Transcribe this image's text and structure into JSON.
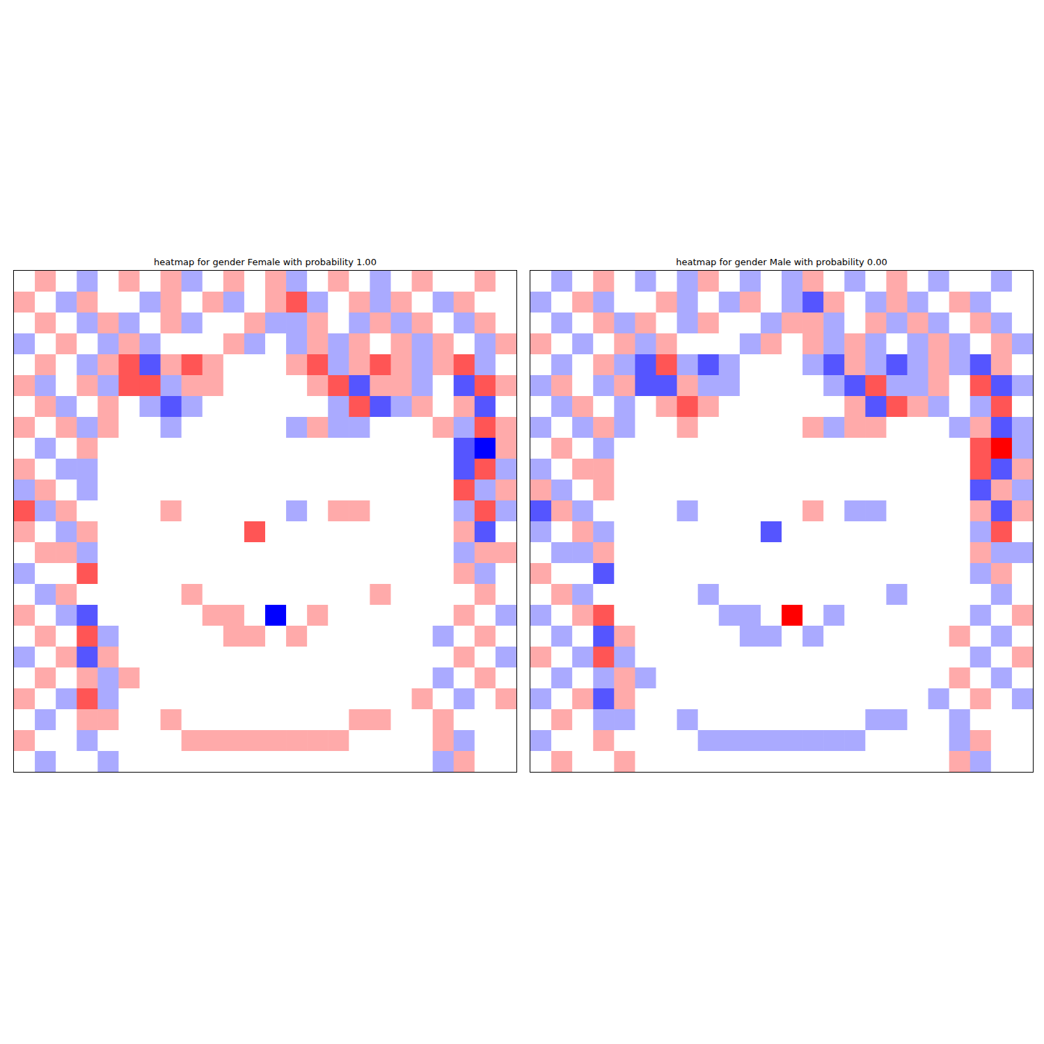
{
  "chart_data": [
    {
      "type": "heatmap",
      "title": "heatmap for gender Female with probability 1.00",
      "xlim": [
        0,
        24
      ],
      "ylim": [
        0,
        24
      ],
      "tick_labels": false,
      "cells": [
        [
          0,
          1,
          0,
          -1,
          0,
          1,
          0,
          1,
          -1,
          0,
          1,
          0,
          1,
          -1,
          0,
          1,
          0,
          -1,
          0,
          1,
          0,
          0,
          1,
          0
        ],
        [
          1,
          0,
          -1,
          1,
          0,
          0,
          -1,
          1,
          0,
          1,
          -1,
          0,
          1,
          2,
          -1,
          0,
          1,
          -1,
          1,
          0,
          -1,
          1,
          0,
          0
        ],
        [
          0,
          1,
          0,
          -1,
          1,
          -1,
          0,
          1,
          -1,
          0,
          0,
          1,
          -1,
          -1,
          1,
          0,
          -1,
          1,
          -1,
          1,
          0,
          -1,
          1,
          0
        ],
        [
          -1,
          0,
          1,
          0,
          -1,
          1,
          -1,
          0,
          0,
          0,
          1,
          -1,
          0,
          -1,
          1,
          -1,
          1,
          0,
          1,
          -1,
          1,
          0,
          -1,
          1
        ],
        [
          0,
          1,
          0,
          -1,
          1,
          2,
          -2,
          1,
          2,
          1,
          0,
          0,
          0,
          1,
          2,
          -1,
          1,
          2,
          1,
          -1,
          1,
          2,
          -1,
          0
        ],
        [
          1,
          -1,
          0,
          1,
          -1,
          2,
          2,
          -1,
          1,
          1,
          0,
          0,
          0,
          0,
          1,
          2,
          -2,
          1,
          1,
          -1,
          0,
          -2,
          2,
          1
        ],
        [
          0,
          1,
          -1,
          0,
          1,
          0,
          -1,
          -2,
          -1,
          0,
          0,
          0,
          0,
          0,
          0,
          -1,
          2,
          -2,
          -1,
          1,
          0,
          1,
          -2,
          0
        ],
        [
          1,
          0,
          1,
          -1,
          1,
          0,
          0,
          -1,
          0,
          0,
          0,
          0,
          0,
          -1,
          1,
          -1,
          -1,
          0,
          0,
          0,
          1,
          -1,
          2,
          1
        ],
        [
          0,
          -1,
          0,
          1,
          0,
          0,
          0,
          0,
          0,
          0,
          0,
          0,
          0,
          0,
          0,
          0,
          0,
          0,
          0,
          0,
          0,
          -2,
          -3,
          1
        ],
        [
          1,
          0,
          -1,
          -1,
          0,
          0,
          0,
          0,
          0,
          0,
          0,
          0,
          0,
          0,
          0,
          0,
          0,
          0,
          0,
          0,
          0,
          -2,
          2,
          -1
        ],
        [
          -1,
          1,
          0,
          -1,
          0,
          0,
          0,
          0,
          0,
          0,
          0,
          0,
          0,
          0,
          0,
          0,
          0,
          0,
          0,
          0,
          0,
          2,
          -1,
          1
        ],
        [
          2,
          -1,
          1,
          0,
          0,
          0,
          0,
          1,
          0,
          0,
          0,
          0,
          0,
          -1,
          0,
          1,
          1,
          0,
          0,
          0,
          0,
          -1,
          2,
          -1
        ],
        [
          1,
          0,
          -1,
          1,
          0,
          0,
          0,
          0,
          0,
          0,
          0,
          2,
          0,
          0,
          0,
          0,
          0,
          0,
          0,
          0,
          0,
          1,
          -2,
          0
        ],
        [
          0,
          1,
          1,
          -1,
          0,
          0,
          0,
          0,
          0,
          0,
          0,
          0,
          0,
          0,
          0,
          0,
          0,
          0,
          0,
          0,
          0,
          -1,
          1,
          1
        ],
        [
          -1,
          0,
          0,
          2,
          0,
          0,
          0,
          0,
          0,
          0,
          0,
          0,
          0,
          0,
          0,
          0,
          0,
          0,
          0,
          0,
          0,
          1,
          -1,
          0
        ],
        [
          0,
          -1,
          1,
          0,
          0,
          0,
          0,
          0,
          1,
          0,
          0,
          0,
          0,
          0,
          0,
          0,
          0,
          1,
          0,
          0,
          0,
          0,
          1,
          0
        ],
        [
          1,
          0,
          -1,
          -2,
          0,
          0,
          0,
          0,
          0,
          1,
          1,
          0,
          -3,
          0,
          1,
          0,
          0,
          0,
          0,
          0,
          0,
          1,
          0,
          -1
        ],
        [
          0,
          1,
          0,
          2,
          -1,
          0,
          0,
          0,
          0,
          0,
          1,
          1,
          0,
          1,
          0,
          0,
          0,
          0,
          0,
          0,
          -1,
          0,
          1,
          0
        ],
        [
          -1,
          0,
          1,
          -2,
          1,
          0,
          0,
          0,
          0,
          0,
          0,
          0,
          0,
          0,
          0,
          0,
          0,
          0,
          0,
          0,
          0,
          1,
          0,
          -1
        ],
        [
          0,
          1,
          0,
          1,
          -1,
          1,
          0,
          0,
          0,
          0,
          0,
          0,
          0,
          0,
          0,
          0,
          0,
          0,
          0,
          0,
          -1,
          0,
          1,
          0
        ],
        [
          1,
          0,
          -1,
          2,
          -1,
          0,
          0,
          0,
          0,
          0,
          0,
          0,
          0,
          0,
          0,
          0,
          0,
          0,
          0,
          1,
          0,
          -1,
          0,
          1
        ],
        [
          0,
          -1,
          0,
          1,
          1,
          0,
          0,
          1,
          0,
          0,
          0,
          0,
          0,
          0,
          0,
          0,
          1,
          1,
          0,
          0,
          1,
          0,
          0,
          0
        ],
        [
          1,
          0,
          0,
          -1,
          0,
          0,
          0,
          0,
          1,
          1,
          1,
          1,
          1,
          1,
          1,
          1,
          0,
          0,
          0,
          0,
          1,
          -1,
          0,
          0
        ],
        [
          0,
          -1,
          0,
          0,
          -1,
          0,
          0,
          0,
          0,
          0,
          0,
          0,
          0,
          0,
          0,
          0,
          0,
          0,
          0,
          0,
          -1,
          1,
          0,
          0
        ]
      ]
    },
    {
      "type": "heatmap",
      "title": "heatmap for gender Male with probability 0.00",
      "xlim": [
        0,
        24
      ],
      "ylim": [
        0,
        24
      ],
      "tick_labels": false,
      "cells": [
        [
          0,
          -1,
          0,
          1,
          0,
          -1,
          0,
          -1,
          1,
          0,
          -1,
          0,
          -1,
          1,
          0,
          -1,
          0,
          1,
          0,
          -1,
          0,
          0,
          -1,
          0
        ],
        [
          -1,
          0,
          1,
          -1,
          0,
          0,
          1,
          -1,
          0,
          -1,
          1,
          0,
          -1,
          -2,
          1,
          0,
          -1,
          1,
          -1,
          0,
          1,
          -1,
          0,
          0
        ],
        [
          0,
          -1,
          0,
          1,
          -1,
          1,
          0,
          -1,
          1,
          0,
          0,
          -1,
          1,
          1,
          -1,
          0,
          1,
          -1,
          1,
          -1,
          0,
          1,
          -1,
          0
        ],
        [
          1,
          0,
          -1,
          0,
          1,
          -1,
          1,
          0,
          0,
          0,
          -1,
          1,
          0,
          1,
          -1,
          1,
          -1,
          0,
          -1,
          1,
          -1,
          0,
          1,
          -1
        ],
        [
          0,
          -1,
          0,
          1,
          -1,
          -2,
          2,
          -1,
          -2,
          -1,
          0,
          0,
          0,
          -1,
          -2,
          1,
          -1,
          -2,
          -1,
          1,
          -1,
          -2,
          1,
          0
        ],
        [
          -1,
          1,
          0,
          -1,
          1,
          -2,
          -2,
          1,
          -1,
          -1,
          0,
          0,
          0,
          0,
          -1,
          -2,
          2,
          -1,
          -1,
          1,
          0,
          2,
          -2,
          -1
        ],
        [
          0,
          -1,
          1,
          0,
          -1,
          0,
          1,
          2,
          1,
          0,
          0,
          0,
          0,
          0,
          0,
          1,
          -2,
          2,
          1,
          -1,
          0,
          -1,
          2,
          0
        ],
        [
          -1,
          0,
          -1,
          1,
          -1,
          0,
          0,
          1,
          0,
          0,
          0,
          0,
          0,
          1,
          -1,
          1,
          1,
          0,
          0,
          0,
          -1,
          1,
          -2,
          -1
        ],
        [
          0,
          1,
          0,
          -1,
          0,
          0,
          0,
          0,
          0,
          0,
          0,
          0,
          0,
          0,
          0,
          0,
          0,
          0,
          0,
          0,
          0,
          2,
          3,
          -1
        ],
        [
          -1,
          0,
          1,
          1,
          0,
          0,
          0,
          0,
          0,
          0,
          0,
          0,
          0,
          0,
          0,
          0,
          0,
          0,
          0,
          0,
          0,
          2,
          -2,
          1
        ],
        [
          1,
          -1,
          0,
          1,
          0,
          0,
          0,
          0,
          0,
          0,
          0,
          0,
          0,
          0,
          0,
          0,
          0,
          0,
          0,
          0,
          0,
          -2,
          1,
          -1
        ],
        [
          -2,
          1,
          -1,
          0,
          0,
          0,
          0,
          -1,
          0,
          0,
          0,
          0,
          0,
          1,
          0,
          -1,
          -1,
          0,
          0,
          0,
          0,
          1,
          -2,
          1
        ],
        [
          -1,
          0,
          1,
          -1,
          0,
          0,
          0,
          0,
          0,
          0,
          0,
          -2,
          0,
          0,
          0,
          0,
          0,
          0,
          0,
          0,
          0,
          -1,
          2,
          0
        ],
        [
          0,
          -1,
          -1,
          1,
          0,
          0,
          0,
          0,
          0,
          0,
          0,
          0,
          0,
          0,
          0,
          0,
          0,
          0,
          0,
          0,
          0,
          1,
          -1,
          -1
        ],
        [
          1,
          0,
          0,
          -2,
          0,
          0,
          0,
          0,
          0,
          0,
          0,
          0,
          0,
          0,
          0,
          0,
          0,
          0,
          0,
          0,
          0,
          -1,
          1,
          0
        ],
        [
          0,
          1,
          -1,
          0,
          0,
          0,
          0,
          0,
          -1,
          0,
          0,
          0,
          0,
          0,
          0,
          0,
          0,
          -1,
          0,
          0,
          0,
          0,
          -1,
          0
        ],
        [
          -1,
          0,
          1,
          2,
          0,
          0,
          0,
          0,
          0,
          -1,
          -1,
          0,
          3,
          0,
          -1,
          0,
          0,
          0,
          0,
          0,
          0,
          -1,
          0,
          1
        ],
        [
          0,
          -1,
          0,
          -2,
          1,
          0,
          0,
          0,
          0,
          0,
          -1,
          -1,
          0,
          -1,
          0,
          0,
          0,
          0,
          0,
          0,
          1,
          0,
          -1,
          0
        ],
        [
          1,
          0,
          -1,
          2,
          -1,
          0,
          0,
          0,
          0,
          0,
          0,
          0,
          0,
          0,
          0,
          0,
          0,
          0,
          0,
          0,
          0,
          -1,
          0,
          1
        ],
        [
          0,
          -1,
          0,
          -1,
          1,
          -1,
          0,
          0,
          0,
          0,
          0,
          0,
          0,
          0,
          0,
          0,
          0,
          0,
          0,
          0,
          1,
          0,
          -1,
          0
        ],
        [
          -1,
          0,
          1,
          -2,
          1,
          0,
          0,
          0,
          0,
          0,
          0,
          0,
          0,
          0,
          0,
          0,
          0,
          0,
          0,
          -1,
          0,
          1,
          0,
          -1
        ],
        [
          0,
          1,
          0,
          -1,
          -1,
          0,
          0,
          -1,
          0,
          0,
          0,
          0,
          0,
          0,
          0,
          0,
          -1,
          -1,
          0,
          0,
          -1,
          0,
          0,
          0
        ],
        [
          -1,
          0,
          0,
          1,
          0,
          0,
          0,
          0,
          -1,
          -1,
          -1,
          -1,
          -1,
          -1,
          -1,
          -1,
          0,
          0,
          0,
          0,
          -1,
          1,
          0,
          0
        ],
        [
          0,
          1,
          0,
          0,
          1,
          0,
          0,
          0,
          0,
          0,
          0,
          0,
          0,
          0,
          0,
          0,
          0,
          0,
          0,
          0,
          1,
          -1,
          0,
          0
        ]
      ]
    }
  ]
}
